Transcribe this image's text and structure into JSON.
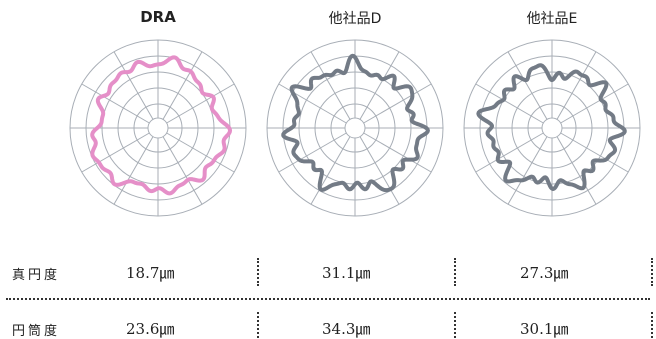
{
  "plots": [
    {
      "title": "DRA",
      "color": "#e58fc8"
    },
    {
      "title": "他社品D",
      "color": "#737b86"
    },
    {
      "title": "他社品E",
      "color": "#737b86"
    }
  ],
  "table": {
    "rows": [
      {
        "label": "真円度",
        "values": [
          "18.7㎛",
          "31.1㎛",
          "27.3㎛"
        ]
      },
      {
        "label": "円筒度",
        "values": [
          "23.6㎛",
          "34.3㎛",
          "30.1㎛"
        ]
      }
    ]
  }
}
